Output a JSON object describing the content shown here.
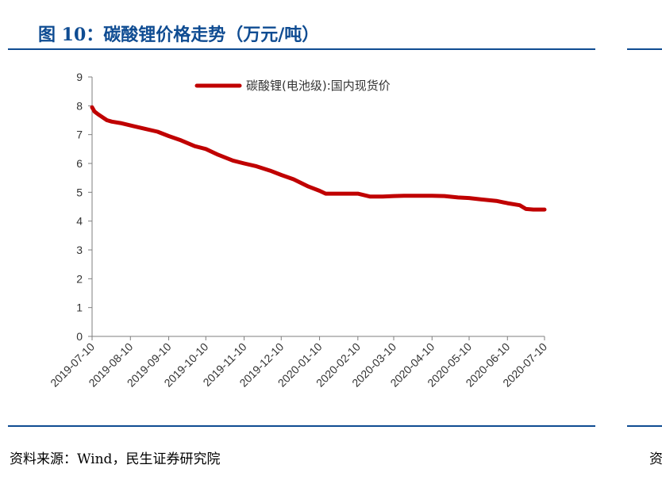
{
  "header": {
    "title": "图 10：碳酸锂价格走势（万元/吨）"
  },
  "footer": {
    "source": "资料来源：Wind，民生证券研究院",
    "source_peek": "资"
  },
  "colors": {
    "accent": "#0f4c92",
    "series": "#c00000"
  },
  "chart_data": {
    "type": "line",
    "title": "",
    "xlabel": "",
    "ylabel": "",
    "ylim": [
      0,
      9
    ],
    "yticks": [
      "0",
      "1",
      "2",
      "3",
      "4",
      "5",
      "6",
      "7",
      "8",
      "9"
    ],
    "xlim": [
      "2019-07-10",
      "2020-07-10"
    ],
    "xticks": [
      "2019-07-10",
      "2019-08-10",
      "2019-09-10",
      "2019-10-10",
      "2019-11-10",
      "2019-12-10",
      "2020-01-10",
      "2020-02-10",
      "2020-03-10",
      "2020-04-10",
      "2020-05-10",
      "2020-06-10",
      "2020-07-10"
    ],
    "grid": false,
    "legend_position": "top",
    "series": [
      {
        "name": "碳酸锂(电池级):国内现货价",
        "x": [
          "2019-07-10",
          "2019-07-12",
          "2019-07-15",
          "2019-07-22",
          "2019-07-26",
          "2019-08-02",
          "2019-08-12",
          "2019-08-22",
          "2019-09-01",
          "2019-09-10",
          "2019-09-20",
          "2019-10-01",
          "2019-10-10",
          "2019-10-20",
          "2019-11-01",
          "2019-11-10",
          "2019-11-20",
          "2019-12-01",
          "2019-12-10",
          "2019-12-20",
          "2020-01-01",
          "2020-01-10",
          "2020-01-15",
          "2020-01-25",
          "2020-02-10",
          "2020-02-20",
          "2020-03-01",
          "2020-03-10",
          "2020-03-20",
          "2020-04-01",
          "2020-04-10",
          "2020-04-20",
          "2020-05-01",
          "2020-05-10",
          "2020-05-20",
          "2020-06-01",
          "2020-06-10",
          "2020-06-20",
          "2020-06-25",
          "2020-07-01",
          "2020-07-10"
        ],
        "values": [
          7.95,
          7.8,
          7.7,
          7.5,
          7.45,
          7.4,
          7.3,
          7.2,
          7.1,
          6.95,
          6.8,
          6.6,
          6.5,
          6.3,
          6.1,
          6.0,
          5.9,
          5.75,
          5.6,
          5.45,
          5.2,
          5.05,
          4.95,
          4.95,
          4.95,
          4.85,
          4.85,
          4.87,
          4.88,
          4.88,
          4.88,
          4.87,
          4.82,
          4.8,
          4.75,
          4.7,
          4.62,
          4.55,
          4.42,
          4.4,
          4.4
        ]
      }
    ]
  }
}
